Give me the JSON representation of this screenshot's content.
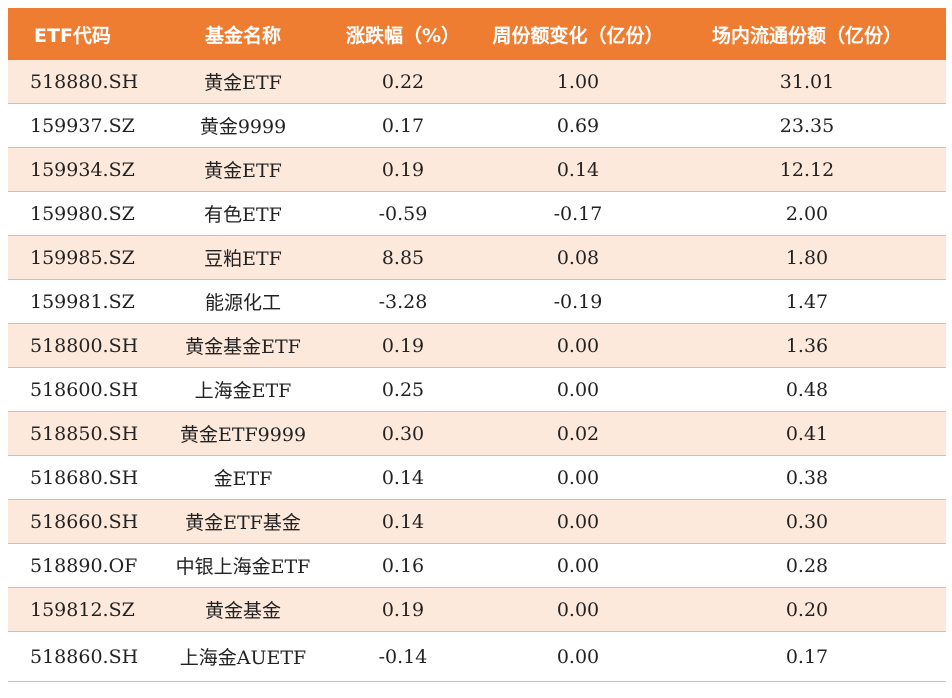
{
  "table": {
    "headers": [
      "ETF代码",
      "基金名称",
      "涨跌幅（%）",
      "周份额变化（亿份）",
      "场内流通份额（亿份）"
    ],
    "rows": [
      [
        "518880.SH",
        "黄金ETF",
        "0.22",
        "1.00",
        "31.01"
      ],
      [
        "159937.SZ",
        "黄金9999",
        "0.17",
        "0.69",
        "23.35"
      ],
      [
        "159934.SZ",
        "黄金ETF",
        "0.19",
        "0.14",
        "12.12"
      ],
      [
        "159980.SZ",
        "有色ETF",
        "-0.59",
        "-0.17",
        "2.00"
      ],
      [
        "159985.SZ",
        "豆粕ETF",
        "8.85",
        "0.08",
        "1.80"
      ],
      [
        "159981.SZ",
        "能源化工",
        "-3.28",
        "-0.19",
        "1.47"
      ],
      [
        "518800.SH",
        "黄金基金ETF",
        "0.19",
        "0.00",
        "1.36"
      ],
      [
        "518600.SH",
        "上海金ETF",
        "0.25",
        "0.00",
        "0.48"
      ],
      [
        "518850.SH",
        "黄金ETF9999",
        "0.30",
        "0.02",
        "0.41"
      ],
      [
        "518680.SH",
        "金ETF",
        "0.14",
        "0.00",
        "0.38"
      ],
      [
        "518660.SH",
        "黄金ETF基金",
        "0.14",
        "0.00",
        "0.30"
      ],
      [
        "518890.OF",
        "中银上海金ETF",
        "0.16",
        "0.00",
        "0.28"
      ],
      [
        "159812.SZ",
        "黄金基金",
        "0.19",
        "0.00",
        "0.20"
      ],
      [
        "518860.SH",
        "上海金AUETF",
        "-0.14",
        "0.00",
        "0.17"
      ]
    ]
  },
  "colors": {
    "header_bg": "#ef7d31",
    "header_text": "#ffffff",
    "stripe_bg": "#fde9dc",
    "row_border": "#f2b48a"
  }
}
